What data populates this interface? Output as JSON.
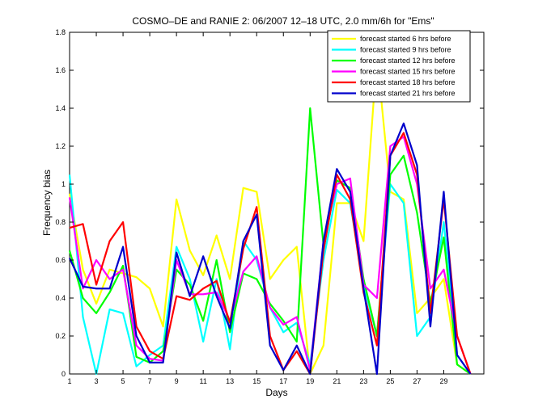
{
  "chart_data": {
    "type": "line",
    "title": "COSMO–DE and RANIE 2: 06/2007 12–18 UTC, 2.0 mm/6h for \"Ems\"",
    "xlabel": "Days",
    "ylabel": "Frequency bias",
    "xlim": [
      1,
      32
    ],
    "ylim": [
      0,
      1.8
    ],
    "xticks": [
      1,
      3,
      5,
      7,
      9,
      11,
      13,
      15,
      17,
      19,
      21,
      23,
      25,
      27,
      29
    ],
    "yticks": [
      0,
      0.2,
      0.4,
      0.6,
      0.8,
      1,
      1.2,
      1.4,
      1.6,
      1.8
    ],
    "ytick_labels": [
      "0",
      "0.2",
      "0.4",
      "0.6",
      "0.8",
      "1",
      "1.2",
      "1.4",
      "1.6",
      "1.8"
    ],
    "grid": false,
    "legend_position": "top-right",
    "x": [
      1,
      2,
      3,
      4,
      5,
      6,
      7,
      8,
      9,
      10,
      11,
      12,
      13,
      14,
      15,
      16,
      17,
      18,
      19,
      20,
      21,
      22,
      23,
      24,
      25,
      26,
      27,
      28,
      29,
      30,
      31
    ],
    "series": [
      {
        "name": "forecast started 6 hrs before",
        "color": "#ffff00",
        "values": [
          0.95,
          0.55,
          0.37,
          0.55,
          0.53,
          0.51,
          0.45,
          0.25,
          0.92,
          0.65,
          0.52,
          0.73,
          0.5,
          0.98,
          0.96,
          0.5,
          0.6,
          0.67,
          0.0,
          0.15,
          0.9,
          0.9,
          0.7,
          1.68,
          0.96,
          0.92,
          0.32,
          0.4,
          0.5,
          0.05,
          0.0
        ]
      },
      {
        "name": "forecast started 9 hrs before",
        "color": "#00ffff",
        "values": [
          1.05,
          0.3,
          0.0,
          0.34,
          0.32,
          0.04,
          0.1,
          0.15,
          0.67,
          0.5,
          0.17,
          0.5,
          0.13,
          0.7,
          0.6,
          0.35,
          0.22,
          0.27,
          0.05,
          0.6,
          0.97,
          0.9,
          0.47,
          0.2,
          1.0,
          0.9,
          0.2,
          0.3,
          0.8,
          0.1,
          0.0
        ]
      },
      {
        "name": "forecast started 12 hrs before",
        "color": "#00ff00",
        "values": [
          0.65,
          0.4,
          0.32,
          0.43,
          0.57,
          0.09,
          0.06,
          0.12,
          0.55,
          0.47,
          0.28,
          0.6,
          0.22,
          0.53,
          0.5,
          0.37,
          0.28,
          0.17,
          1.4,
          0.68,
          1.02,
          0.98,
          0.5,
          0.2,
          1.05,
          1.15,
          0.85,
          0.37,
          0.72,
          0.05,
          0.0
        ]
      },
      {
        "name": "forecast started 15 hrs before",
        "color": "#ff00ff",
        "values": [
          0.93,
          0.45,
          0.6,
          0.5,
          0.55,
          0.15,
          0.08,
          0.07,
          0.6,
          0.42,
          0.42,
          0.43,
          0.28,
          0.54,
          0.62,
          0.35,
          0.26,
          0.3,
          0.02,
          0.7,
          1.0,
          1.03,
          0.47,
          0.4,
          1.2,
          1.25,
          1.0,
          0.45,
          0.55,
          0.2,
          0.0
        ]
      },
      {
        "name": "forecast started 18 hrs before",
        "color": "#ff0000",
        "values": [
          0.77,
          0.79,
          0.47,
          0.7,
          0.8,
          0.25,
          0.12,
          0.08,
          0.41,
          0.39,
          0.45,
          0.49,
          0.27,
          0.66,
          0.88,
          0.2,
          0.02,
          0.12,
          0.0,
          0.65,
          1.05,
          0.92,
          0.43,
          0.15,
          1.15,
          1.27,
          1.05,
          0.32,
          0.92,
          0.2,
          0.0
        ]
      },
      {
        "name": "forecast started 21 hrs before",
        "color": "#0000cc",
        "values": [
          0.61,
          0.46,
          0.45,
          0.45,
          0.67,
          0.2,
          0.06,
          0.06,
          0.64,
          0.41,
          0.62,
          0.41,
          0.24,
          0.7,
          0.84,
          0.15,
          0.02,
          0.15,
          0.0,
          0.7,
          1.08,
          0.96,
          0.45,
          0.0,
          1.15,
          1.32,
          1.1,
          0.25,
          0.96,
          0.1,
          0.0
        ]
      }
    ]
  }
}
